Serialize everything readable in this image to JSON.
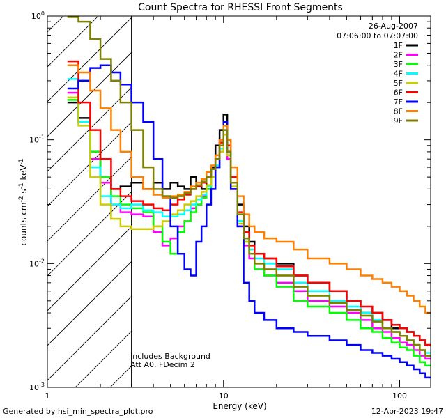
{
  "chart_data": {
    "type": "line",
    "title": "Count Spectra for RHESSI Front Segments",
    "xlabel": "Energy (keV)",
    "ylabel_main": "counts cm",
    "ylabel_sup1": "-2",
    "ylabel_mid": " s",
    "ylabel_sup2": "-1",
    "ylabel_end": " keV",
    "ylabel_sup3": "-1",
    "x_scale": "log",
    "y_scale": "log",
    "xlim": [
      1,
      150
    ],
    "ylim": [
      0.001,
      1.0
    ],
    "x_ticks": [
      {
        "value": 1,
        "label": "1"
      },
      {
        "value": 10,
        "label": "10"
      },
      {
        "value": 100,
        "label": "100"
      }
    ],
    "y_ticks": [
      {
        "value": 1.0,
        "base": "10",
        "exp": "0"
      },
      {
        "value": 0.1,
        "base": "10",
        "exp": "-1"
      },
      {
        "value": 0.01,
        "base": "10",
        "exp": "-2"
      },
      {
        "value": 0.001,
        "base": "10",
        "exp": "-3"
      }
    ],
    "hatched_region": [
      1,
      3
    ],
    "date": "26-Aug-2007",
    "time_range": "07:06:00 to 07:07:00",
    "annotation_line1": "Includes Background",
    "annotation_line2": "Att A0, FDecim 2",
    "footer_left": "Generated by hsi_min_spectra_plot.pro",
    "footer_right": "12-Apr-2023 19:47",
    "series": [
      {
        "name": "1F",
        "color": "#000000",
        "x": [
          1.3,
          1.5,
          1.75,
          2.0,
          2.3,
          2.6,
          3.0,
          3.5,
          4.0,
          4.5,
          5.0,
          5.5,
          6.0,
          6.5,
          7.0,
          7.5,
          8.0,
          8.5,
          9.0,
          9.5,
          10.0,
          10.5,
          11.0,
          12.0,
          13.0,
          14.0,
          15.0,
          17.0,
          20.0,
          25.0,
          30.0,
          40.0,
          50.0,
          60.0,
          70.0,
          80.0,
          90.0,
          100.0,
          110.0,
          120.0,
          130.0,
          140.0
        ],
        "y": [
          0.2,
          0.15,
          0.08,
          0.05,
          0.04,
          0.042,
          0.045,
          0.04,
          0.045,
          0.04,
          0.045,
          0.042,
          0.04,
          0.05,
          0.045,
          0.04,
          0.05,
          0.06,
          0.09,
          0.12,
          0.16,
          0.1,
          0.05,
          0.03,
          0.02,
          0.015,
          0.012,
          0.011,
          0.01,
          0.008,
          0.007,
          0.006,
          0.005,
          0.004,
          0.004,
          0.0035,
          0.003,
          0.003,
          0.0028,
          0.0026,
          0.0024,
          0.0022
        ]
      },
      {
        "name": "2F",
        "color": "#ff00ff",
        "x": [
          1.3,
          1.5,
          1.75,
          2.0,
          2.3,
          2.6,
          3.0,
          3.5,
          4.0,
          4.5,
          5.0,
          5.5,
          6.0,
          6.5,
          7.0,
          7.5,
          8.0,
          8.5,
          9.0,
          9.5,
          10.0,
          10.5,
          11.0,
          12.0,
          13.0,
          14.0,
          15.0,
          17.0,
          20.0,
          25.0,
          30.0,
          40.0,
          50.0,
          60.0,
          70.0,
          80.0,
          90.0,
          100.0,
          110.0,
          120.0,
          130.0,
          140.0
        ],
        "y": [
          0.24,
          0.14,
          0.07,
          0.045,
          0.03,
          0.026,
          0.025,
          0.024,
          0.018,
          0.014,
          0.016,
          0.02,
          0.022,
          0.028,
          0.03,
          0.035,
          0.04,
          0.05,
          0.06,
          0.08,
          0.12,
          0.07,
          0.04,
          0.02,
          0.014,
          0.011,
          0.009,
          0.008,
          0.007,
          0.006,
          0.005,
          0.0045,
          0.004,
          0.0035,
          0.003,
          0.0028,
          0.0025,
          0.0023,
          0.0022,
          0.002,
          0.0018,
          0.0017
        ]
      },
      {
        "name": "3F",
        "color": "#00ff00",
        "x": [
          1.3,
          1.5,
          1.75,
          2.0,
          2.3,
          2.6,
          3.0,
          3.5,
          4.0,
          4.5,
          5.0,
          5.5,
          6.0,
          6.5,
          7.0,
          7.5,
          8.0,
          8.5,
          9.0,
          9.5,
          10.0,
          10.5,
          11.0,
          12.0,
          13.0,
          14.0,
          15.0,
          17.0,
          20.0,
          25.0,
          30.0,
          40.0,
          50.0,
          60.0,
          70.0,
          80.0,
          90.0,
          100.0,
          110.0,
          120.0,
          130.0,
          140.0
        ],
        "y": [
          0.21,
          0.14,
          0.08,
          0.05,
          0.035,
          0.03,
          0.028,
          0.026,
          0.02,
          0.015,
          0.012,
          0.018,
          0.022,
          0.026,
          0.03,
          0.034,
          0.04,
          0.05,
          0.06,
          0.085,
          0.13,
          0.08,
          0.045,
          0.022,
          0.015,
          0.012,
          0.009,
          0.008,
          0.0065,
          0.005,
          0.0045,
          0.004,
          0.0035,
          0.003,
          0.0028,
          0.0025,
          0.0023,
          0.0021,
          0.002,
          0.0018,
          0.0016,
          0.0015
        ]
      },
      {
        "name": "4F",
        "color": "#00ffff",
        "x": [
          1.3,
          1.5,
          1.75,
          2.0,
          2.3,
          2.6,
          3.0,
          3.5,
          4.0,
          4.5,
          5.0,
          5.5,
          6.0,
          6.5,
          7.0,
          7.5,
          8.0,
          8.5,
          9.0,
          9.5,
          10.0,
          10.5,
          11.0,
          12.0,
          13.0,
          14.0,
          15.0,
          17.0,
          20.0,
          25.0,
          30.0,
          40.0,
          50.0,
          60.0,
          70.0,
          80.0,
          90.0,
          100.0,
          110.0,
          120.0,
          130.0,
          140.0
        ],
        "y": [
          0.31,
          0.14,
          0.06,
          0.035,
          0.03,
          0.028,
          0.03,
          0.027,
          0.026,
          0.024,
          0.024,
          0.025,
          0.027,
          0.03,
          0.033,
          0.036,
          0.042,
          0.05,
          0.062,
          0.085,
          0.12,
          0.08,
          0.045,
          0.022,
          0.016,
          0.013,
          0.011,
          0.01,
          0.009,
          0.007,
          0.006,
          0.005,
          0.0045,
          0.004,
          0.0035,
          0.003,
          0.0028,
          0.0026,
          0.0024,
          0.0022,
          0.002,
          0.0019
        ]
      },
      {
        "name": "5F",
        "color": "#cccc00",
        "x": [
          1.3,
          1.5,
          1.75,
          2.0,
          2.3,
          2.6,
          3.0,
          3.5,
          4.0,
          4.5,
          5.0,
          5.5,
          6.0,
          6.5,
          7.0,
          7.5,
          8.0,
          8.5,
          9.0,
          9.5,
          10.0,
          10.5,
          11.0,
          12.0,
          13.0,
          14.0,
          15.0,
          17.0,
          20.0,
          25.0,
          30.0,
          40.0,
          50.0,
          60.0,
          70.0,
          80.0,
          90.0,
          100.0,
          110.0,
          120.0,
          130.0,
          140.0
        ],
        "y": [
          0.22,
          0.13,
          0.05,
          0.03,
          0.023,
          0.02,
          0.019,
          0.019,
          0.02,
          0.022,
          0.025,
          0.027,
          0.03,
          0.032,
          0.035,
          0.038,
          0.043,
          0.05,
          0.06,
          0.08,
          0.11,
          0.075,
          0.042,
          0.021,
          0.015,
          0.012,
          0.01,
          0.009,
          0.008,
          0.0065,
          0.0055,
          0.0048,
          0.0042,
          0.0038,
          0.0034,
          0.003,
          0.0028,
          0.0026,
          0.0024,
          0.0022,
          0.002,
          0.0018
        ]
      },
      {
        "name": "6F",
        "color": "#ff0000",
        "x": [
          1.3,
          1.5,
          1.75,
          2.0,
          2.3,
          2.6,
          3.0,
          3.5,
          4.0,
          4.5,
          5.0,
          5.5,
          6.0,
          6.5,
          7.0,
          7.5,
          8.0,
          8.5,
          9.0,
          9.5,
          10.0,
          10.5,
          11.0,
          12.0,
          13.0,
          14.0,
          15.0,
          17.0,
          20.0,
          25.0,
          30.0,
          40.0,
          50.0,
          60.0,
          70.0,
          80.0,
          90.0,
          100.0,
          110.0,
          120.0,
          130.0,
          140.0
        ],
        "y": [
          0.43,
          0.2,
          0.12,
          0.07,
          0.04,
          0.035,
          0.032,
          0.03,
          0.028,
          0.027,
          0.03,
          0.033,
          0.036,
          0.04,
          0.042,
          0.045,
          0.05,
          0.058,
          0.07,
          0.095,
          0.14,
          0.09,
          0.05,
          0.026,
          0.018,
          0.014,
          0.012,
          0.011,
          0.0095,
          0.008,
          0.007,
          0.006,
          0.005,
          0.0045,
          0.004,
          0.0035,
          0.0032,
          0.003,
          0.0028,
          0.0026,
          0.0024,
          0.0022
        ]
      },
      {
        "name": "7F",
        "color": "#0000ff",
        "x": [
          1.3,
          1.5,
          1.75,
          2.0,
          2.3,
          2.6,
          3.0,
          3.5,
          4.0,
          4.5,
          5.0,
          5.5,
          6.0,
          6.5,
          7.0,
          7.5,
          8.0,
          8.5,
          9.0,
          9.5,
          10.0,
          10.5,
          11.0,
          12.0,
          13.0,
          14.0,
          15.0,
          17.0,
          20.0,
          25.0,
          30.0,
          40.0,
          50.0,
          60.0,
          70.0,
          80.0,
          90.0,
          100.0,
          110.0,
          120.0,
          130.0,
          140.0
        ],
        "y": [
          0.26,
          0.3,
          0.38,
          0.4,
          0.35,
          0.28,
          0.2,
          0.14,
          0.07,
          0.035,
          0.02,
          0.012,
          0.009,
          0.008,
          0.015,
          0.02,
          0.03,
          0.04,
          0.06,
          0.09,
          0.14,
          0.08,
          0.04,
          0.02,
          0.007,
          0.005,
          0.004,
          0.0035,
          0.003,
          0.0028,
          0.0026,
          0.0024,
          0.0022,
          0.002,
          0.0019,
          0.0018,
          0.0017,
          0.0016,
          0.0015,
          0.0014,
          0.0013,
          0.0012
        ]
      },
      {
        "name": "8F",
        "color": "#ff8000",
        "x": [
          1.3,
          1.5,
          1.75,
          2.0,
          2.3,
          2.6,
          3.0,
          3.5,
          4.0,
          4.5,
          5.0,
          5.5,
          6.0,
          6.5,
          7.0,
          7.5,
          8.0,
          8.5,
          9.0,
          9.5,
          10.0,
          10.5,
          11.0,
          12.0,
          13.0,
          14.0,
          15.0,
          17.0,
          20.0,
          25.0,
          30.0,
          40.0,
          50.0,
          60.0,
          70.0,
          80.0,
          90.0,
          100.0,
          110.0,
          120.0,
          130.0,
          140.0
        ],
        "y": [
          0.4,
          0.35,
          0.25,
          0.18,
          0.12,
          0.08,
          0.05,
          0.04,
          0.036,
          0.034,
          0.035,
          0.036,
          0.038,
          0.042,
          0.045,
          0.048,
          0.055,
          0.062,
          0.075,
          0.1,
          0.13,
          0.1,
          0.06,
          0.035,
          0.025,
          0.02,
          0.018,
          0.016,
          0.015,
          0.013,
          0.011,
          0.01,
          0.009,
          0.008,
          0.0075,
          0.007,
          0.0065,
          0.006,
          0.0055,
          0.005,
          0.0045,
          0.004
        ]
      },
      {
        "name": "9F",
        "color": "#808000",
        "x": [
          1.3,
          1.5,
          1.75,
          2.0,
          2.3,
          2.6,
          3.0,
          3.5,
          4.0,
          4.5,
          5.0,
          5.5,
          6.0,
          6.5,
          7.0,
          7.5,
          8.0,
          8.5,
          9.0,
          9.5,
          10.0,
          10.5,
          11.0,
          12.0,
          13.0,
          14.0,
          15.0,
          17.0,
          20.0,
          25.0,
          30.0,
          40.0,
          50.0,
          60.0,
          70.0,
          80.0,
          90.0,
          100.0,
          110.0,
          120.0,
          130.0,
          140.0
        ],
        "y": [
          0.98,
          0.9,
          0.65,
          0.45,
          0.3,
          0.2,
          0.12,
          0.06,
          0.04,
          0.035,
          0.034,
          0.035,
          0.037,
          0.04,
          0.043,
          0.046,
          0.05,
          0.058,
          0.07,
          0.09,
          0.12,
          0.08,
          0.045,
          0.025,
          0.016,
          0.012,
          0.01,
          0.009,
          0.008,
          0.0065,
          0.0055,
          0.0048,
          0.0042,
          0.0038,
          0.0034,
          0.003,
          0.0028,
          0.0026,
          0.0024,
          0.0022,
          0.002,
          0.0018
        ]
      }
    ]
  }
}
